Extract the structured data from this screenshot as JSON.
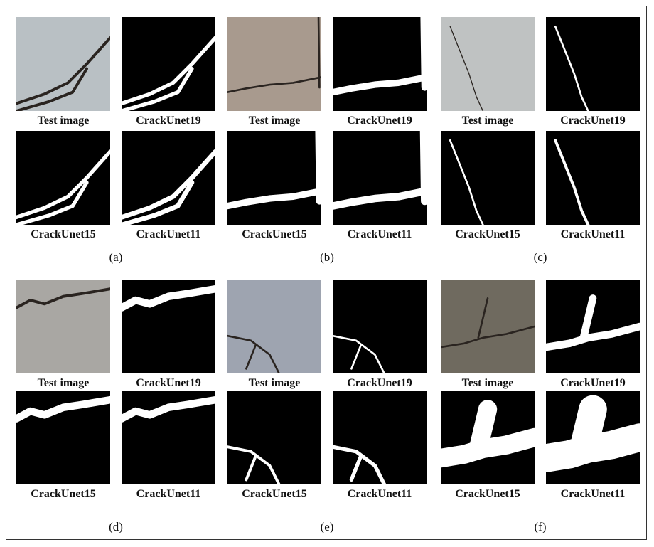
{
  "figure": {
    "panels": [
      {
        "letter": "(a)",
        "captions": [
          "Test image",
          "CrackUnet19",
          "CrackUnet15",
          "CrackUnet11"
        ],
        "test_color": "#b9c0c4"
      },
      {
        "letter": "(b)",
        "captions": [
          "Test image",
          "CrackUnet19",
          "CrackUnet15",
          "CrackUnet11"
        ],
        "test_color": "#a89a8e"
      },
      {
        "letter": "(c)",
        "captions": [
          "Test image",
          "CrackUnet19",
          "CrackUnet15",
          "CrackUnet11"
        ],
        "test_color": "#bfc2c2"
      },
      {
        "letter": "(d)",
        "captions": [
          "Test image",
          "CrackUnet19",
          "CrackUnet15",
          "CrackUnet11"
        ],
        "test_color": "#a9a7a3"
      },
      {
        "letter": "(e)",
        "captions": [
          "Test image",
          "CrackUnet19",
          "CrackUnet15",
          "CrackUnet11"
        ],
        "test_color": "#9ea4b0"
      },
      {
        "letter": "(f)",
        "captions": [
          "Test image",
          "CrackUnet19",
          "CrackUnet15",
          "CrackUnet11"
        ],
        "test_color": "#6f6a5f"
      }
    ]
  }
}
